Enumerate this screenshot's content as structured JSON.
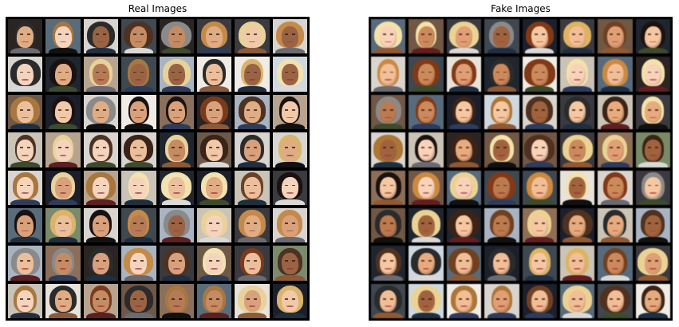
{
  "panels": [
    {
      "title": "Real Images",
      "kind": "real",
      "tile_count": 64
    },
    {
      "title": "Fake Images",
      "kind": "fake",
      "tile_count": 64
    }
  ],
  "colors": {
    "frame": "#000000",
    "page": "#ffffff",
    "title_text": "#000000"
  }
}
